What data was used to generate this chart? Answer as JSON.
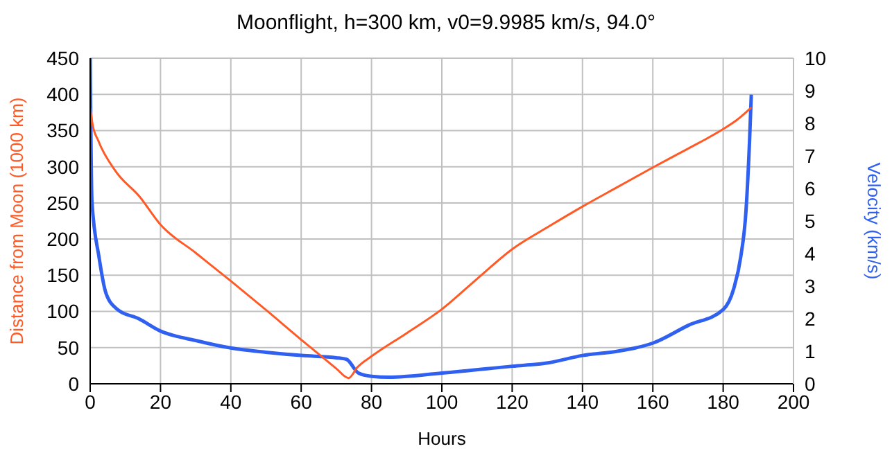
{
  "chart_data": {
    "type": "line",
    "title": "Moonflight, h=300 km, v0=9.9985 km/s, 94.0°",
    "xlabel": "Hours",
    "ylabel": "Distance from Moon (1000 km)",
    "y2label": "Velocity (km/s)",
    "series": [
      {
        "name": null,
        "color": "#ff5a26",
        "x": [
          0,
          0.7,
          2.3,
          7.2,
          14,
          20,
          30,
          40,
          50,
          60,
          65,
          70,
          73.5,
          76,
          80,
          90,
          100,
          110,
          120,
          130.6,
          140,
          150,
          160,
          170,
          180,
          184,
          188
        ],
        "values": [
          381,
          358,
          336,
          294,
          259,
          220,
          181,
          142,
          102,
          61,
          41,
          21,
          8,
          23,
          38,
          70,
          103,
          145,
          186,
          218,
          245,
          272,
          299,
          325,
          352,
          365,
          382
        ]
      },
      {
        "name": null,
        "color": "#3060f0",
        "axis": "y2",
        "x": [
          0,
          0.5,
          2.5,
          4.5,
          7.8,
          13.8,
          20,
          30,
          40,
          50,
          60,
          70,
          72.9,
          76.3,
          80,
          85,
          100,
          120,
          130.6,
          140,
          150,
          155,
          160,
          170,
          180,
          183,
          185,
          186.5,
          187.5,
          188
        ],
        "values": [
          10,
          5.6,
          3.9,
          2.78,
          2.28,
          2.0,
          1.62,
          1.33,
          1.1,
          0.97,
          0.87,
          0.8,
          0.75,
          0.33,
          0.23,
          0.2,
          0.33,
          0.54,
          0.65,
          0.87,
          1.0,
          1.1,
          1.25,
          1.79,
          2.28,
          2.92,
          3.9,
          5.33,
          7.46,
          8.88
        ]
      }
    ],
    "xlim": [
      0,
      200
    ],
    "xticks": [
      0,
      20,
      40,
      60,
      80,
      100,
      120,
      140,
      160,
      180,
      200
    ],
    "ylim": [
      0,
      450
    ],
    "yticks": [
      0,
      50,
      100,
      150,
      200,
      250,
      300,
      350,
      400,
      450
    ],
    "y2lim": [
      0,
      10
    ],
    "y2ticks": [
      0,
      1,
      2,
      3,
      4,
      5,
      6,
      7,
      8,
      9,
      10
    ],
    "grid": true,
    "legend": false,
    "marker": "none",
    "line_style": "solid"
  }
}
